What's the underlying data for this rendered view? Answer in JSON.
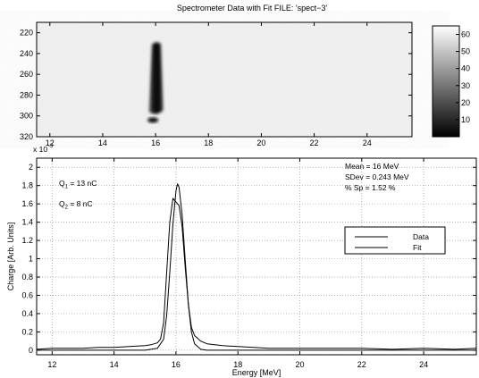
{
  "chart_data": [
    {
      "type": "heatmap",
      "title": "Spectrometer Data with Fit   FILE: 'spect−3'",
      "xlim": [
        11.5,
        25.7
      ],
      "ylim": [
        320,
        210
      ],
      "x_ticks": [
        12,
        14,
        16,
        18,
        20,
        22,
        24
      ],
      "x_tick_labels": [
        "12",
        "14",
        "16",
        "18",
        "20",
        "22",
        "24"
      ],
      "y_ticks": [
        220,
        240,
        260,
        280,
        300,
        320
      ],
      "y_tick_labels": [
        "220",
        "240",
        "260",
        "280",
        "300",
        "320"
      ],
      "grid": false,
      "colormap": "gray",
      "colorbar": {
        "clim": [
          0,
          65
        ],
        "ticks": [
          10,
          20,
          30,
          40,
          50,
          60
        ],
        "tick_labels": [
          "10",
          "20",
          "30",
          "40",
          "50",
          "60"
        ]
      },
      "features": [
        {
          "name": "main blob",
          "x_center": 16.0,
          "x_half_width": 0.25,
          "y_top": 229,
          "y_bottom": 298,
          "value": 0
        },
        {
          "name": "lower spot",
          "x_center": 15.9,
          "y": 304,
          "value": 10
        }
      ]
    },
    {
      "type": "line",
      "xlabel": "Energy [MeV]",
      "ylabel": "Charge [Arb. Units]",
      "y_exponent_label": "x 10",
      "xlim": [
        11.5,
        25.7
      ],
      "ylim": [
        -0.05,
        2.1
      ],
      "x_ticks": [
        12,
        14,
        16,
        18,
        20,
        22,
        24
      ],
      "x_tick_labels": [
        "12",
        "14",
        "16",
        "18",
        "20",
        "22",
        "24"
      ],
      "y_ticks": [
        0,
        0.2,
        0.4,
        0.6,
        0.8,
        1,
        1.2,
        1.4,
        1.6,
        1.8,
        2
      ],
      "y_tick_labels": [
        "0",
        "0.2",
        "0.4",
        "0.6",
        "0.8",
        "1",
        "1.2",
        "1.4",
        "1.6",
        "1.8",
        "2"
      ],
      "grid": true,
      "legend_position": "center-right",
      "series": [
        {
          "name": "Data",
          "x": [
            11.5,
            12.0,
            12.5,
            13.0,
            13.5,
            14.0,
            14.5,
            15.0,
            15.2,
            15.4,
            15.5,
            15.6,
            15.7,
            15.8,
            15.9,
            16.0,
            16.1,
            16.2,
            16.3,
            16.4,
            16.5,
            16.6,
            16.8,
            17.0,
            17.5,
            18.0,
            18.5,
            19.0,
            20.0,
            21.0,
            22.0,
            23.0,
            24.0,
            25.0,
            25.7
          ],
          "y": [
            0.01,
            0.02,
            0.02,
            0.02,
            0.03,
            0.03,
            0.04,
            0.05,
            0.06,
            0.08,
            0.12,
            0.3,
            0.85,
            1.4,
            1.66,
            1.62,
            1.58,
            1.35,
            0.9,
            0.5,
            0.25,
            0.16,
            0.1,
            0.07,
            0.05,
            0.04,
            0.03,
            0.02,
            0.02,
            0.02,
            0.02,
            0.01,
            0.02,
            0.01,
            0.02
          ]
        },
        {
          "name": "Fit",
          "x": [
            11.5,
            14.0,
            15.0,
            15.4,
            15.6,
            15.7,
            15.8,
            15.9,
            16.0,
            16.05,
            16.1,
            16.2,
            16.3,
            16.4,
            16.5,
            16.6,
            16.8,
            17.0,
            18.0,
            25.7
          ],
          "y": [
            0.0,
            0.0,
            0.0,
            0.02,
            0.12,
            0.38,
            0.85,
            1.38,
            1.74,
            1.82,
            1.78,
            1.48,
            0.98,
            0.5,
            0.2,
            0.07,
            0.01,
            0.0,
            0.0,
            0.0
          ]
        }
      ],
      "annotations": {
        "q1": {
          "symbol": "Q",
          "sub": "1",
          "text": " = 13 nC"
        },
        "q2": {
          "symbol": "Q",
          "sub": "2",
          "text": " = 8 nC"
        },
        "stats": [
          "Mean = 16 MeV",
          "SDev = 0.243 MeV",
          "% Sp = 1.52 %"
        ]
      }
    }
  ]
}
